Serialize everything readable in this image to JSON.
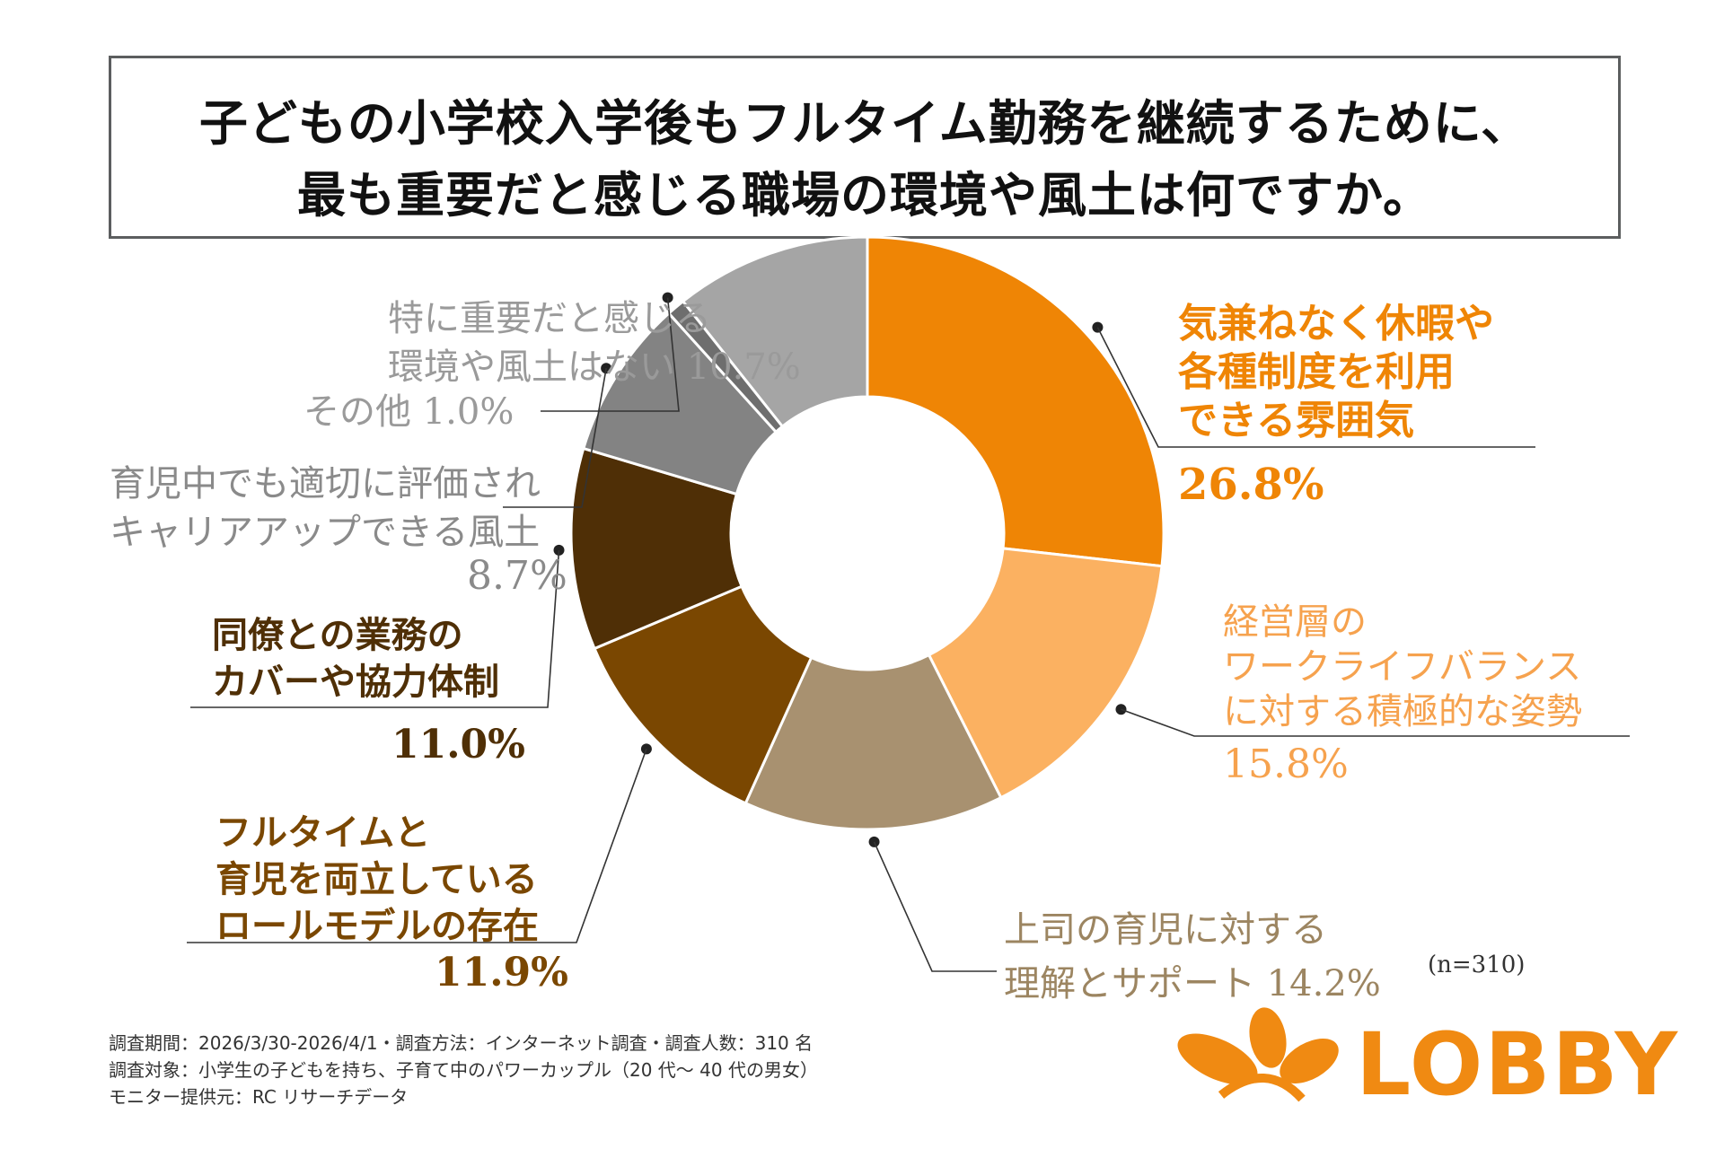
{
  "title": {
    "line1": "子どもの小学校入学後もフルタイム勤務を継続するために、",
    "line2": "最も重要だと感じる職場の環境や風土は何ですか。"
  },
  "sample_note": "(n=310)",
  "footnotes": [
    "調査期間：2026/3/30-2026/4/1・調査方法：インターネット調査・調査人数：310 名",
    "調査対象：小学生の子どもを持ち、子育て中のパワーカップル（20 代～ 40 代の男女）",
    "モニター提供元：RC リサーチデータ"
  ],
  "brand": {
    "name": "LOBBY",
    "color": "#f08a12",
    "icon": "leaf-flower-icon"
  },
  "chart_data": {
    "type": "pie",
    "donut": true,
    "unit": "%",
    "slices": [
      {
        "label_lines": [
          "気兼ねなく休暇や",
          "各種制度を利用",
          "できる雰囲気"
        ],
        "value": 26.8,
        "value_label": "26.8%",
        "color": "#ef8505"
      },
      {
        "label_lines": [
          "経営層の",
          "ワークライフバランス",
          "に対する積極的な姿勢"
        ],
        "value": 15.8,
        "value_label": "15.8%",
        "color": "#fbb161"
      },
      {
        "label_lines": [
          "上司の育児に対する",
          "理解とサポート 14.2%"
        ],
        "value": 14.2,
        "value_label": "",
        "color": "#a89170"
      },
      {
        "label_lines": [
          "フルタイムと",
          "育児を両立している",
          "ロールモデルの存在"
        ],
        "value": 11.9,
        "value_label": "11.9%",
        "color": "#7a4701"
      },
      {
        "label_lines": [
          "同僚との業務の",
          "カバーや協力体制"
        ],
        "value": 11.0,
        "value_label": "11.0%",
        "color": "#4f2f06"
      },
      {
        "label_lines": [
          "育児中でも適切に評価され",
          "キャリアアップできる風土"
        ],
        "value": 8.7,
        "value_label": "8.7%",
        "color": "#838383"
      },
      {
        "label_lines": [
          "その他 1.0%"
        ],
        "value": 1.0,
        "value_label": "",
        "color": "#6e6e6e"
      },
      {
        "label_lines": [
          "特に重要だと感じる",
          "環境や風土はない 10.7%"
        ],
        "value": 10.7,
        "value_label": "",
        "color": "#a5a5a5"
      }
    ]
  }
}
